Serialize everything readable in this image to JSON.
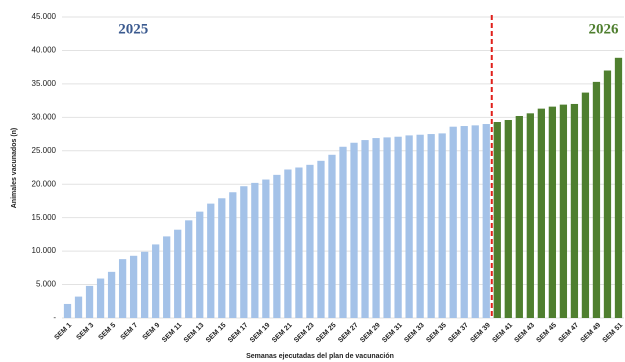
{
  "chart_data": {
    "type": "bar",
    "x_label": "Semanas ejecutadas del plan de vacunación",
    "y_label": "Animales vacunados (n)",
    "categories": [
      "SEM 1",
      null,
      "SEM 3",
      null,
      "SEM 5",
      null,
      "SEM 7",
      null,
      "SEM 9",
      null,
      "SEM 11",
      null,
      "SEM 13",
      null,
      "SEM 15",
      null,
      "SEM 17",
      null,
      "SEM 19",
      null,
      "SEM 21",
      null,
      "SEM 23",
      null,
      "SEM 25",
      null,
      "SEM 27",
      null,
      "SEM 29",
      null,
      "SEM 31",
      null,
      "SEM 33",
      null,
      "SEM 35",
      null,
      "SEM 37",
      null,
      "SEM 39",
      null,
      "SEM 41",
      null,
      "SEM 43",
      null,
      "SEM 45",
      null,
      "SEM 47",
      null,
      "SEM 49",
      null,
      "SEM 51"
    ],
    "series": [
      {
        "name": "2025",
        "color": "#a4c2e8",
        "label_color": "#3b5a8f",
        "values": [
          2100,
          3200,
          4800,
          5900,
          6900,
          8800,
          9300,
          9900,
          11000,
          12200,
          13200,
          14600,
          15900,
          17100,
          17900,
          18800,
          19700,
          20200,
          20700,
          21400,
          22200,
          22500,
          22900,
          23500,
          24400,
          25600,
          26200,
          26600,
          26900,
          27000,
          27100,
          27300,
          27400,
          27500,
          27600,
          28600,
          28700,
          28800,
          29000,
          null,
          null,
          null,
          null,
          null,
          null,
          null,
          null,
          null,
          null,
          null,
          null
        ]
      },
      {
        "name": "2026",
        "color": "#4f7f2f",
        "label_color": "#4f7f2f",
        "values": [
          null,
          null,
          null,
          null,
          null,
          null,
          null,
          null,
          null,
          null,
          null,
          null,
          null,
          null,
          null,
          null,
          null,
          null,
          null,
          null,
          null,
          null,
          null,
          null,
          null,
          null,
          null,
          null,
          null,
          null,
          null,
          null,
          null,
          null,
          null,
          null,
          null,
          null,
          null,
          29300,
          29600,
          30200,
          30600,
          31300,
          31600,
          31900,
          32000,
          33700,
          35300,
          37000,
          38900
        ]
      }
    ],
    "ylim": [
      0,
      45000
    ],
    "yticks": [
      {
        "value": 0,
        "label": "-"
      },
      {
        "value": 5000,
        "label": "5.000"
      },
      {
        "value": 10000,
        "label": "10.000"
      },
      {
        "value": 15000,
        "label": "15.000"
      },
      {
        "value": 20000,
        "label": "20.000"
      },
      {
        "value": 25000,
        "label": "25.000"
      },
      {
        "value": 30000,
        "label": "30.000"
      },
      {
        "value": 35000,
        "label": "35.000"
      },
      {
        "value": 40000,
        "label": "40.000"
      },
      {
        "value": 45000,
        "label": "45.000"
      }
    ],
    "grid": true
  }
}
